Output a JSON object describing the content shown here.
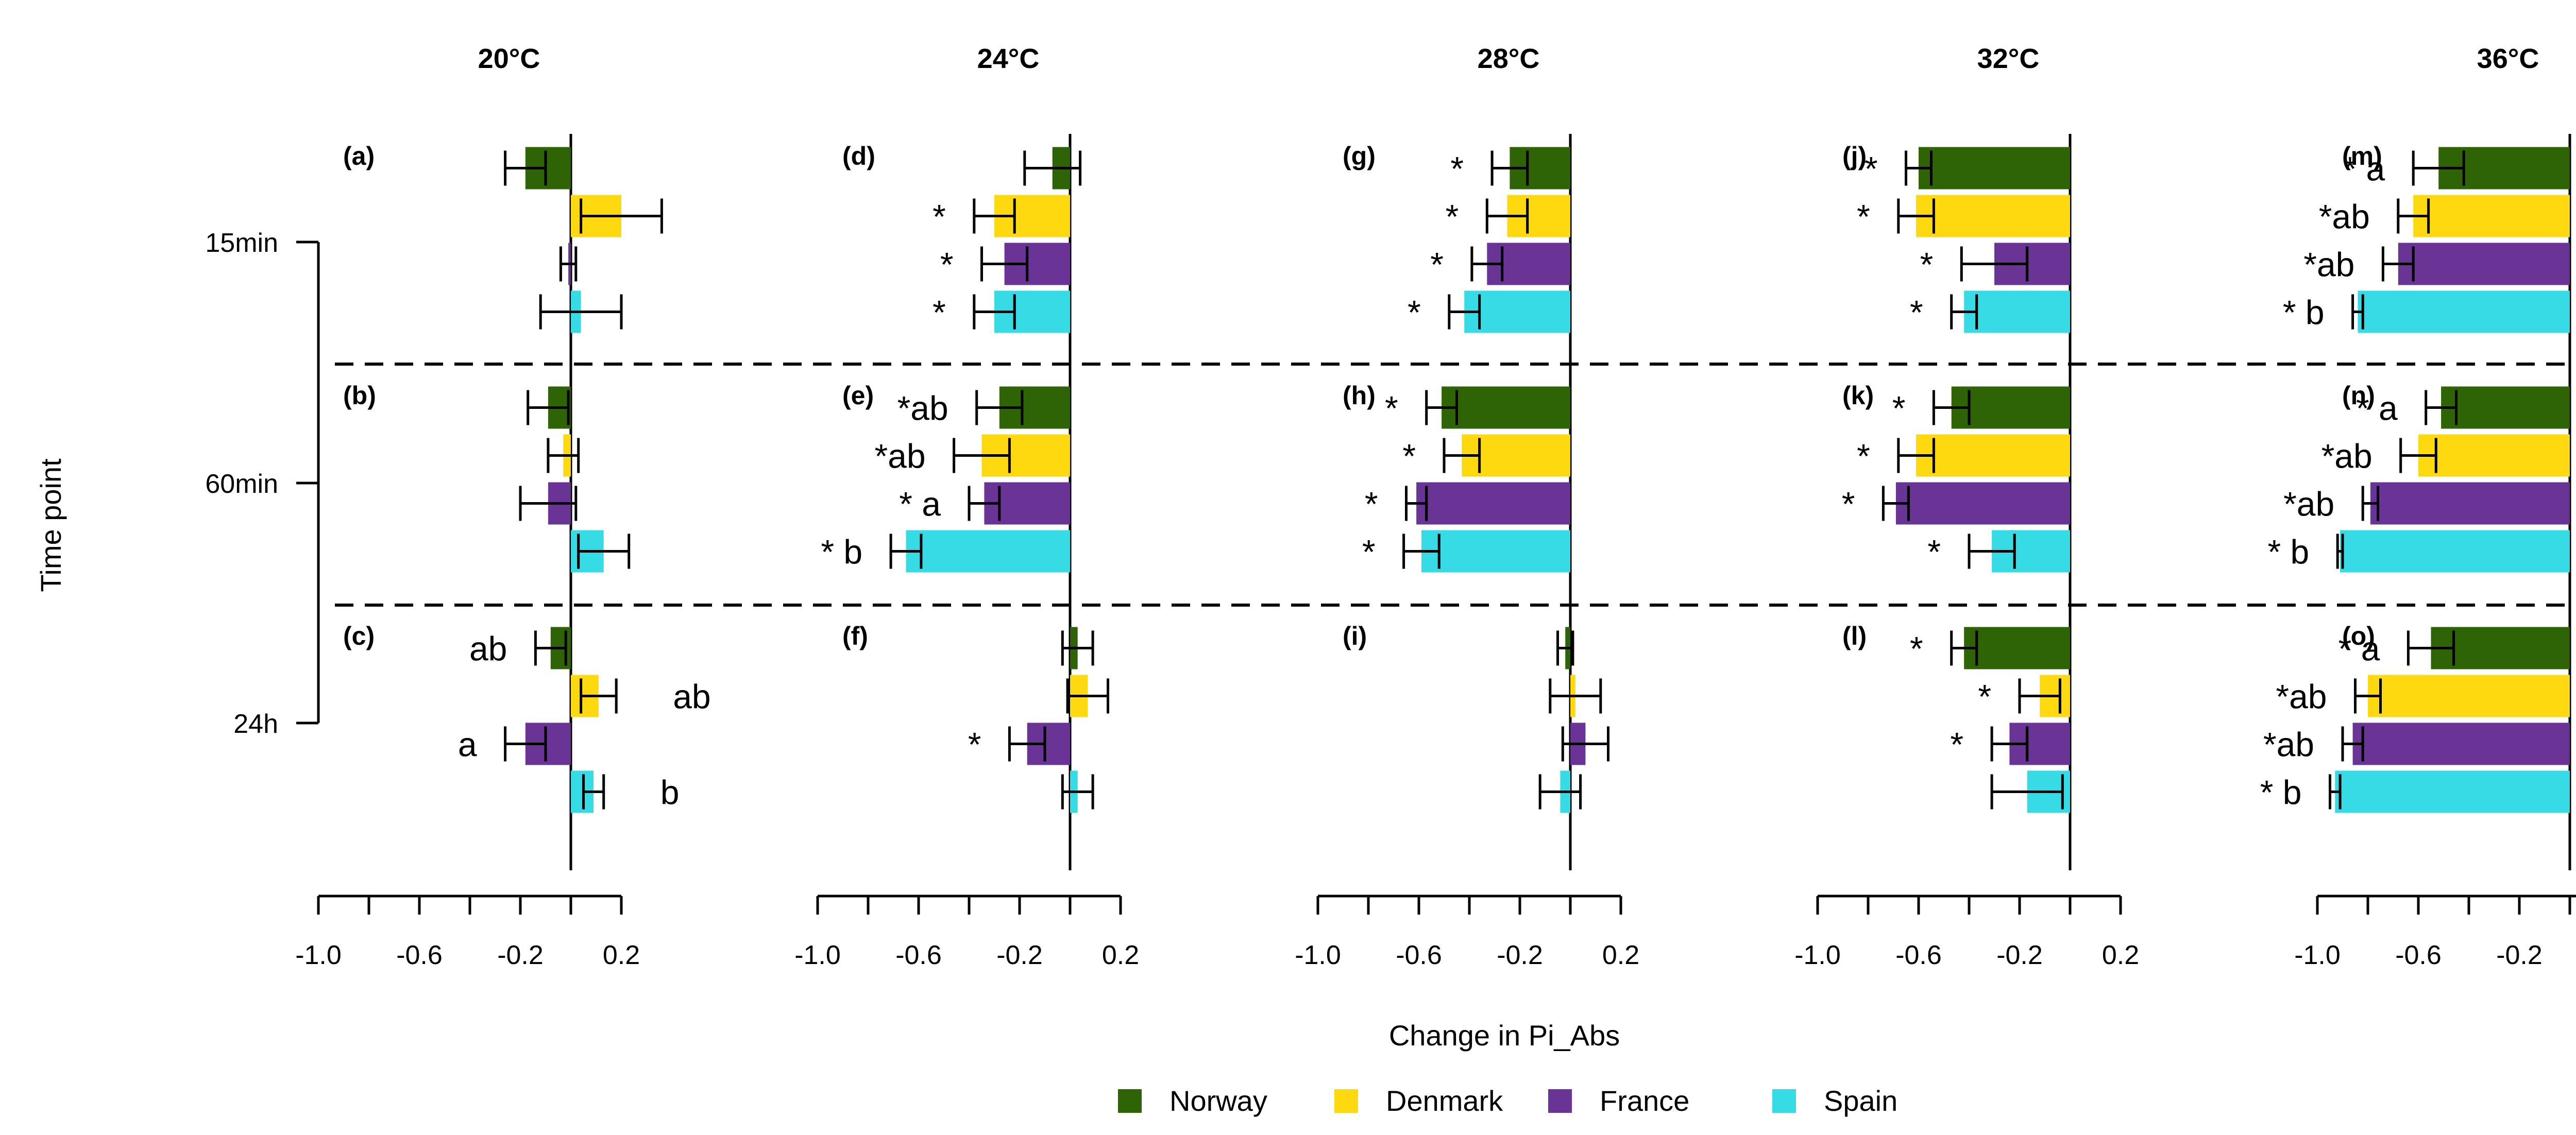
{
  "chart_data": {
    "type": "bar",
    "orientation": "horizontal",
    "xlabel": "Change in Pi_Abs",
    "ylabel": "Time point",
    "xlim": [
      -1.0,
      0.2
    ],
    "xticks": [
      "-1.0",
      "-0.6",
      "-0.2",
      "0.2"
    ],
    "time_points": [
      "15min",
      "60min",
      "24h"
    ],
    "legend": {
      "placement": "bottom",
      "items": [
        {
          "name": "Norway",
          "color": "#2e6405"
        },
        {
          "name": "Denmark",
          "color": "#ffd910"
        },
        {
          "name": "France",
          "color": "#6a3497"
        },
        {
          "name": "Spain",
          "color": "#36dbe5"
        }
      ]
    },
    "temperatures": [
      {
        "title": "20°C",
        "panels": [
          {
            "label": "(a)",
            "time": "15min",
            "bars": [
              {
                "v": -0.18,
                "e": 0.08,
                "a": ""
              },
              {
                "v": 0.2,
                "e": 0.16,
                "a": ""
              },
              {
                "v": -0.01,
                "e": 0.03,
                "a": ""
              },
              {
                "v": 0.04,
                "e": 0.16,
                "a": ""
              }
            ]
          },
          {
            "label": "(b)",
            "time": "60min",
            "bars": [
              {
                "v": -0.09,
                "e": 0.08,
                "a": ""
              },
              {
                "v": -0.03,
                "e": 0.06,
                "a": ""
              },
              {
                "v": -0.09,
                "e": 0.11,
                "a": ""
              },
              {
                "v": 0.13,
                "e": 0.1,
                "a": ""
              }
            ]
          },
          {
            "label": "(c)",
            "time": "24h",
            "bars": [
              {
                "v": -0.08,
                "e": 0.06,
                "a": "ab"
              },
              {
                "v": 0.11,
                "e": 0.07,
                "a": "ab"
              },
              {
                "v": -0.18,
                "e": 0.08,
                "a": "a"
              },
              {
                "v": 0.09,
                "e": 0.04,
                "a": "b"
              }
            ]
          }
        ]
      },
      {
        "title": "24°C",
        "panels": [
          {
            "label": "(d)",
            "time": "15min",
            "bars": [
              {
                "v": -0.07,
                "e": 0.11,
                "a": ""
              },
              {
                "v": -0.3,
                "e": 0.08,
                "a": "*"
              },
              {
                "v": -0.26,
                "e": 0.09,
                "a": "*"
              },
              {
                "v": -0.3,
                "e": 0.08,
                "a": "*"
              }
            ]
          },
          {
            "label": "(e)",
            "time": "60min",
            "bars": [
              {
                "v": -0.28,
                "e": 0.09,
                "a": "*ab"
              },
              {
                "v": -0.35,
                "e": 0.11,
                "a": "*ab"
              },
              {
                "v": -0.34,
                "e": 0.06,
                "a": "* a"
              },
              {
                "v": -0.65,
                "e": 0.06,
                "a": "* b"
              }
            ]
          },
          {
            "label": "(f)",
            "time": "24h",
            "bars": [
              {
                "v": 0.03,
                "e": 0.06,
                "a": ""
              },
              {
                "v": 0.07,
                "e": 0.08,
                "a": ""
              },
              {
                "v": -0.17,
                "e": 0.07,
                "a": "*"
              },
              {
                "v": 0.03,
                "e": 0.06,
                "a": ""
              }
            ]
          }
        ]
      },
      {
        "title": "28°C",
        "panels": [
          {
            "label": "(g)",
            "time": "15min",
            "bars": [
              {
                "v": -0.24,
                "e": 0.07,
                "a": "*"
              },
              {
                "v": -0.25,
                "e": 0.08,
                "a": "*"
              },
              {
                "v": -0.33,
                "e": 0.06,
                "a": "*"
              },
              {
                "v": -0.42,
                "e": 0.06,
                "a": "*"
              }
            ]
          },
          {
            "label": "(h)",
            "time": "60min",
            "bars": [
              {
                "v": -0.51,
                "e": 0.06,
                "a": "*"
              },
              {
                "v": -0.43,
                "e": 0.07,
                "a": "*"
              },
              {
                "v": -0.61,
                "e": 0.04,
                "a": "*"
              },
              {
                "v": -0.59,
                "e": 0.07,
                "a": "*"
              }
            ]
          },
          {
            "label": "(i)",
            "time": "24h",
            "bars": [
              {
                "v": -0.02,
                "e": 0.03,
                "a": ""
              },
              {
                "v": 0.02,
                "e": 0.1,
                "a": ""
              },
              {
                "v": 0.06,
                "e": 0.09,
                "a": ""
              },
              {
                "v": -0.04,
                "e": 0.08,
                "a": ""
              }
            ]
          }
        ]
      },
      {
        "title": "32°C",
        "panels": [
          {
            "label": "(j)",
            "time": "15min",
            "bars": [
              {
                "v": -0.6,
                "e": 0.05,
                "a": "*"
              },
              {
                "v": -0.61,
                "e": 0.07,
                "a": "*"
              },
              {
                "v": -0.3,
                "e": 0.13,
                "a": "*"
              },
              {
                "v": -0.42,
                "e": 0.05,
                "a": "*"
              }
            ]
          },
          {
            "label": "(k)",
            "time": "60min",
            "bars": [
              {
                "v": -0.47,
                "e": 0.07,
                "a": "*"
              },
              {
                "v": -0.61,
                "e": 0.07,
                "a": "*"
              },
              {
                "v": -0.69,
                "e": 0.05,
                "a": "*"
              },
              {
                "v": -0.31,
                "e": 0.09,
                "a": "*"
              }
            ]
          },
          {
            "label": "(l)",
            "time": "24h",
            "bars": [
              {
                "v": -0.42,
                "e": 0.05,
                "a": "*"
              },
              {
                "v": -0.12,
                "e": 0.08,
                "a": "*"
              },
              {
                "v": -0.24,
                "e": 0.07,
                "a": "*"
              },
              {
                "v": -0.17,
                "e": 0.14,
                "a": ""
              }
            ]
          }
        ]
      },
      {
        "title": "36°C",
        "panels": [
          {
            "label": "(m)",
            "time": "15min",
            "bars": [
              {
                "v": -0.52,
                "e": 0.1,
                "a": "* a"
              },
              {
                "v": -0.62,
                "e": 0.06,
                "a": "*ab"
              },
              {
                "v": -0.68,
                "e": 0.06,
                "a": "*ab"
              },
              {
                "v": -0.84,
                "e": 0.02,
                "a": "* b"
              }
            ]
          },
          {
            "label": "(n)",
            "time": "60min",
            "bars": [
              {
                "v": -0.51,
                "e": 0.06,
                "a": "* a"
              },
              {
                "v": -0.6,
                "e": 0.07,
                "a": "*ab"
              },
              {
                "v": -0.79,
                "e": 0.03,
                "a": "*ab"
              },
              {
                "v": -0.91,
                "e": 0.01,
                "a": "* b"
              }
            ]
          },
          {
            "label": "(o)",
            "time": "24h",
            "bars": [
              {
                "v": -0.55,
                "e": 0.09,
                "a": "* a"
              },
              {
                "v": -0.8,
                "e": 0.05,
                "a": "*ab"
              },
              {
                "v": -0.86,
                "e": 0.04,
                "a": "*ab"
              },
              {
                "v": -0.93,
                "e": 0.02,
                "a": "* b"
              }
            ]
          }
        ]
      }
    ]
  }
}
